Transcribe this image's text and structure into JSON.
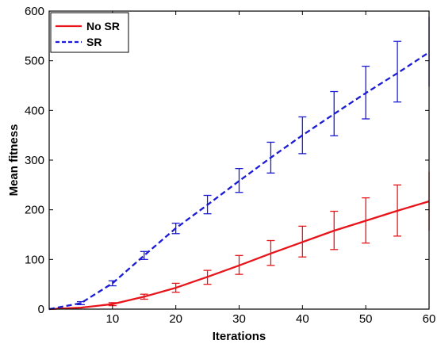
{
  "chart_data": {
    "type": "line",
    "xlabel": "Iterations",
    "ylabel": "Mean fitness",
    "xlim": [
      0,
      60
    ],
    "ylim": [
      0,
      600
    ],
    "xticks": [
      10,
      20,
      30,
      40,
      50,
      60
    ],
    "yticks": [
      0,
      100,
      200,
      300,
      400,
      500,
      600
    ],
    "grid": false,
    "legend": "top-left",
    "series": [
      {
        "name": "No SR",
        "color": "#e8141a",
        "style": "solid",
        "x": [
          0,
          5,
          10,
          15,
          20,
          25,
          30,
          35,
          40,
          45,
          50,
          55,
          60
        ],
        "y": [
          0,
          3,
          10,
          25,
          43,
          65,
          88,
          112,
          135,
          158,
          178,
          198,
          217
        ],
        "error": [
          {
            "x": 10,
            "low": 7,
            "high": 13
          },
          {
            "x": 15,
            "low": 20,
            "high": 30
          },
          {
            "x": 20,
            "low": 34,
            "high": 52
          },
          {
            "x": 25,
            "low": 50,
            "high": 78
          },
          {
            "x": 30,
            "low": 70,
            "high": 108
          },
          {
            "x": 35,
            "low": 88,
            "high": 138
          },
          {
            "x": 40,
            "low": 105,
            "high": 167
          },
          {
            "x": 45,
            "low": 120,
            "high": 197
          },
          {
            "x": 50,
            "low": 133,
            "high": 224
          },
          {
            "x": 55,
            "low": 147,
            "high": 250
          },
          {
            "x": 60,
            "low": 158,
            "high": 276
          }
        ]
      },
      {
        "name": "SR",
        "color": "#1c1cd6",
        "style": "dashed",
        "x": [
          0,
          5,
          10,
          15,
          20,
          25,
          30,
          35,
          40,
          45,
          50,
          55,
          60
        ],
        "y": [
          0,
          12,
          52,
          108,
          163,
          210,
          258,
          305,
          350,
          393,
          435,
          475,
          517
        ],
        "error": [
          {
            "x": 5,
            "low": 9,
            "high": 15
          },
          {
            "x": 10,
            "low": 47,
            "high": 57
          },
          {
            "x": 15,
            "low": 100,
            "high": 116
          },
          {
            "x": 20,
            "low": 152,
            "high": 173
          },
          {
            "x": 25,
            "low": 192,
            "high": 229
          },
          {
            "x": 30,
            "low": 235,
            "high": 283
          },
          {
            "x": 35,
            "low": 274,
            "high": 336
          },
          {
            "x": 40,
            "low": 313,
            "high": 387
          },
          {
            "x": 45,
            "low": 349,
            "high": 438
          },
          {
            "x": 50,
            "low": 383,
            "high": 489
          },
          {
            "x": 55,
            "low": 417,
            "high": 539
          },
          {
            "x": 60,
            "low": 448,
            "high": 588
          }
        ]
      }
    ]
  }
}
